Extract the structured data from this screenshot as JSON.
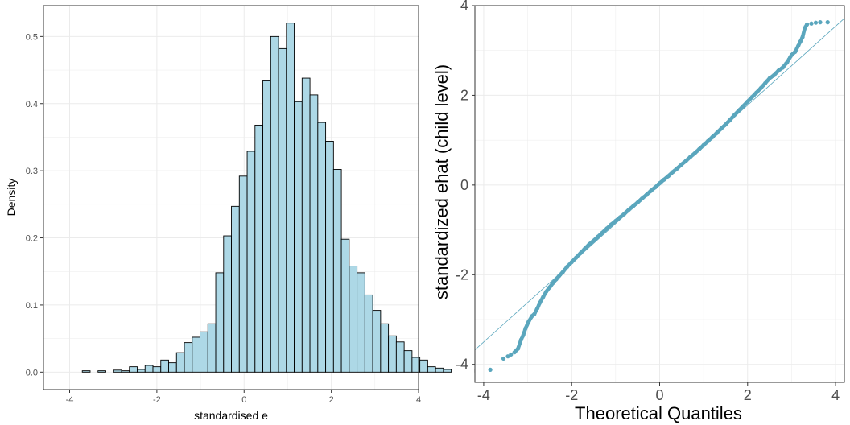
{
  "colors": {
    "bar_fill": "#add8e6",
    "bar_stroke": "#000000",
    "point": "#5aa6bd",
    "ref_line": "#5aa6bd",
    "grid": "#ebebeb",
    "panel_border": "#333333"
  },
  "chart_data": [
    {
      "type": "bar",
      "subtype": "histogram",
      "title": "",
      "xlabel": "standardised e",
      "ylabel": "Density",
      "xlim": [
        -4.6,
        4.0
      ],
      "ylim": [
        -0.026,
        0.546
      ],
      "x_ticks": [
        -4,
        -2,
        0,
        2,
        4
      ],
      "y_ticks": [
        0.0,
        0.1,
        0.2,
        0.3,
        0.4,
        0.5
      ],
      "x_tick_labels": [
        "-4",
        "-2",
        "0",
        "2",
        "4"
      ],
      "y_tick_labels": [
        "0.0",
        "0.1",
        "0.2",
        "0.3",
        "0.4",
        "0.5"
      ],
      "grid": true,
      "bin_width": 0.18,
      "bin_start": -4.25,
      "values": [
        0.0,
        0.0,
        0.0,
        0.002,
        0.0,
        0.002,
        0.0,
        0.003,
        0.002,
        0.008,
        0.004,
        0.01,
        0.008,
        0.018,
        0.014,
        0.029,
        0.044,
        0.052,
        0.06,
        0.072,
        0.148,
        0.203,
        0.247,
        0.292,
        0.329,
        0.368,
        0.434,
        0.5,
        0.482,
        0.52,
        0.403,
        0.438,
        0.413,
        0.372,
        0.344,
        0.302,
        0.198,
        0.158,
        0.148,
        0.115,
        0.092,
        0.072,
        0.054,
        0.045,
        0.032,
        0.022,
        0.018,
        0.008,
        0.006,
        0.004,
        0.0,
        0.0,
        0.0,
        0.004
      ]
    },
    {
      "type": "scatter",
      "subtype": "qq-plot",
      "title": "",
      "xlabel": "Theoretical Quantiles",
      "ylabel": "standardized ehat (child level)",
      "xlim": [
        -4.2,
        4.2
      ],
      "ylim": [
        -4.4,
        4.0
      ],
      "x_ticks": [
        -4,
        -2,
        0,
        2,
        4
      ],
      "y_ticks": [
        -4,
        -2,
        0,
        2,
        4
      ],
      "x_tick_labels": [
        "-4",
        "-2",
        "0",
        "2",
        "4"
      ],
      "y_tick_labels": [
        "-4",
        "-2",
        "0",
        "2",
        "4"
      ],
      "grid": true,
      "reference_line": {
        "intercept": 0.02,
        "slope": 0.88
      },
      "points": [
        [
          -3.85,
          -4.12
        ],
        [
          -3.55,
          -3.87
        ],
        [
          -3.45,
          -3.82
        ],
        [
          -3.38,
          -3.78
        ],
        [
          -3.3,
          -3.73
        ],
        [
          -3.22,
          -3.65
        ],
        [
          -3.15,
          -3.45
        ],
        [
          -3.1,
          -3.35
        ],
        [
          -3.05,
          -3.2
        ],
        [
          -2.98,
          -3.05
        ],
        [
          -2.9,
          -2.92
        ],
        [
          -2.85,
          -2.88
        ],
        [
          -2.78,
          -2.75
        ],
        [
          -2.72,
          -2.62
        ],
        [
          -2.65,
          -2.5
        ],
        [
          -2.58,
          -2.38
        ],
        [
          -2.5,
          -2.28
        ],
        [
          -2.42,
          -2.18
        ],
        [
          -2.35,
          -2.1
        ],
        [
          -2.28,
          -2.02
        ],
        [
          -2.2,
          -1.94
        ],
        [
          -2.1,
          -1.82
        ],
        [
          -2.0,
          -1.72
        ],
        [
          -1.9,
          -1.62
        ],
        [
          -1.8,
          -1.52
        ],
        [
          -1.7,
          -1.42
        ],
        [
          -1.6,
          -1.32
        ],
        [
          -1.5,
          -1.24
        ],
        [
          -1.4,
          -1.15
        ],
        [
          -1.3,
          -1.06
        ],
        [
          -1.2,
          -0.97
        ],
        [
          -1.1,
          -0.88
        ],
        [
          -1.0,
          -0.8
        ],
        [
          -0.9,
          -0.72
        ],
        [
          -0.8,
          -0.64
        ],
        [
          -0.7,
          -0.55
        ],
        [
          -0.6,
          -0.47
        ],
        [
          -0.5,
          -0.39
        ],
        [
          -0.4,
          -0.3
        ],
        [
          -0.3,
          -0.22
        ],
        [
          -0.2,
          -0.13
        ],
        [
          -0.1,
          -0.05
        ],
        [
          0.0,
          0.04
        ],
        [
          0.1,
          0.12
        ],
        [
          0.2,
          0.2
        ],
        [
          0.3,
          0.29
        ],
        [
          0.4,
          0.37
        ],
        [
          0.5,
          0.46
        ],
        [
          0.6,
          0.54
        ],
        [
          0.7,
          0.63
        ],
        [
          0.8,
          0.71
        ],
        [
          0.9,
          0.8
        ],
        [
          1.0,
          0.89
        ],
        [
          1.1,
          0.98
        ],
        [
          1.2,
          1.07
        ],
        [
          1.3,
          1.16
        ],
        [
          1.4,
          1.26
        ],
        [
          1.5,
          1.35
        ],
        [
          1.6,
          1.45
        ],
        [
          1.7,
          1.56
        ],
        [
          1.8,
          1.66
        ],
        [
          1.9,
          1.76
        ],
        [
          2.0,
          1.86
        ],
        [
          2.1,
          1.96
        ],
        [
          2.2,
          2.06
        ],
        [
          2.3,
          2.16
        ],
        [
          2.4,
          2.27
        ],
        [
          2.5,
          2.38
        ],
        [
          2.6,
          2.45
        ],
        [
          2.7,
          2.55
        ],
        [
          2.8,
          2.62
        ],
        [
          2.9,
          2.74
        ],
        [
          3.0,
          2.9
        ],
        [
          3.08,
          2.97
        ],
        [
          3.15,
          3.1
        ],
        [
          3.2,
          3.2
        ],
        [
          3.25,
          3.3
        ],
        [
          3.3,
          3.5
        ],
        [
          3.35,
          3.58
        ],
        [
          3.45,
          3.6
        ],
        [
          3.55,
          3.62
        ],
        [
          3.65,
          3.63
        ],
        [
          3.82,
          3.63
        ]
      ]
    }
  ]
}
